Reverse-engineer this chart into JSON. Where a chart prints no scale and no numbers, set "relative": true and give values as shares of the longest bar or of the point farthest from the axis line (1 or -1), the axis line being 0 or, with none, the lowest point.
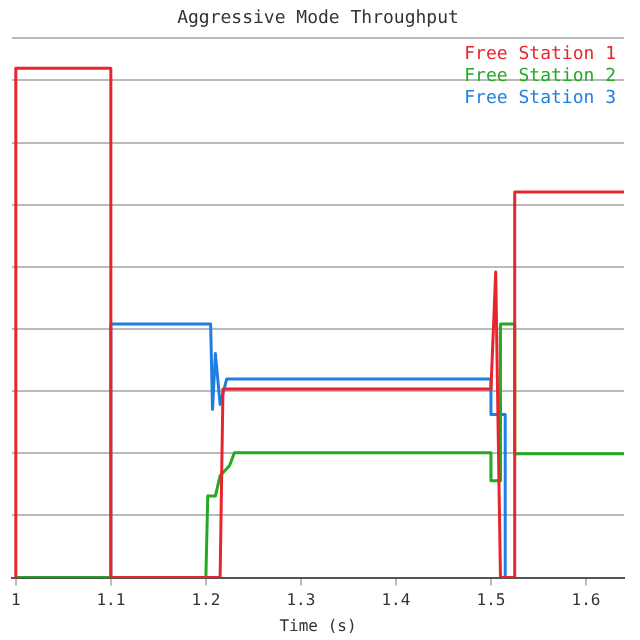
{
  "chart_data": {
    "type": "line",
    "title": "Aggressive Mode Throughput",
    "xlabel": "Time (s)",
    "relative": true,
    "grid": "y",
    "legend": "top right",
    "marker": "none",
    "line_style": "solid",
    "xlim": [
      0.996,
      1.64
    ],
    "xticks": [
      1,
      1.1,
      1.2,
      1.3,
      1.4,
      1.5,
      1.6
    ],
    "series": [
      {
        "name": "Free Station 1",
        "color": "#e8242c",
        "x": [
          1.0,
          1.0,
          1.1,
          1.1,
          1.215,
          1.218,
          1.5,
          1.505,
          1.51,
          1.525,
          1.525,
          1.64
        ],
        "values": [
          0,
          1,
          1,
          0,
          0,
          0.37,
          0.37,
          0.6,
          0,
          0,
          0.757,
          0.757
        ]
      },
      {
        "name": "Free Station 2",
        "color": "#22aa22",
        "x": [
          1.0,
          1.2,
          1.202,
          1.21,
          1.215,
          1.225,
          1.23,
          1.5,
          1.5,
          1.51,
          1.51,
          1.525,
          1.525,
          1.64
        ],
        "values": [
          0,
          0,
          0.16,
          0.16,
          0.2,
          0.22,
          0.245,
          0.245,
          0.19,
          0.19,
          0.498,
          0.498,
          0.243,
          0.243
        ]
      },
      {
        "name": "Free Station 3",
        "color": "#1f7fe0",
        "x": [
          1.1,
          1.1,
          1.205,
          1.207,
          1.21,
          1.215,
          1.222,
          1.5,
          1.5,
          1.515,
          1.515
        ],
        "values": [
          0,
          0.498,
          0.498,
          0.33,
          0.44,
          0.34,
          0.39,
          0.39,
          0.32,
          0.32,
          0
        ]
      }
    ]
  }
}
